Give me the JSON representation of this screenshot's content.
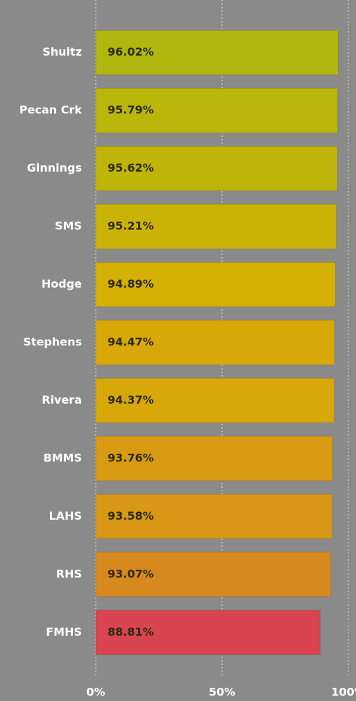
{
  "chart_data": {
    "type": "bar",
    "orientation": "horizontal",
    "categories": [
      "Shultz",
      "Pecan Crk",
      "Ginnings",
      "SMS",
      "Hodge",
      "Stephens",
      "Rivera",
      "BMMS",
      "LAHS",
      "RHS",
      "FMHS"
    ],
    "values": [
      96.02,
      95.79,
      95.62,
      95.21,
      94.89,
      94.47,
      94.37,
      93.76,
      93.58,
      93.07,
      88.81
    ],
    "value_labels": [
      "96.02%",
      "95.79%",
      "95.62%",
      "95.21%",
      "94.89%",
      "94.47%",
      "94.37%",
      "93.76%",
      "93.58%",
      "93.07%",
      "88.81%"
    ],
    "colors": [
      "#b0b70e",
      "#bab60c",
      "#c0b40a",
      "#cab306",
      "#d4b004",
      "#d8a808",
      "#d8a70a",
      "#d89a12",
      "#d89816",
      "#d8891e",
      "#d84550"
    ],
    "xlim": [
      0,
      100
    ],
    "xticks": [
      {
        "value": 0,
        "label": "0%"
      },
      {
        "value": 50,
        "label": "50%"
      },
      {
        "value": 100,
        "label": "100%"
      }
    ],
    "grid": true
  }
}
